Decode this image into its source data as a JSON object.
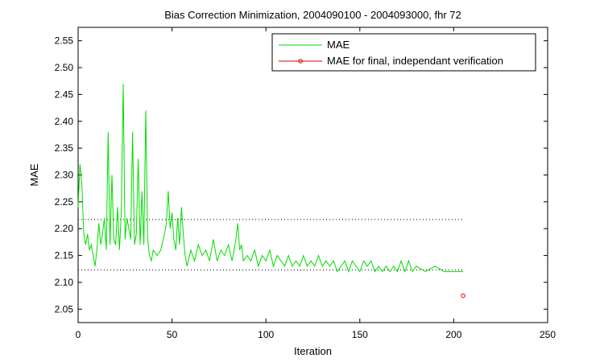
{
  "chart_data": {
    "type": "line",
    "title": "Bias Correction Minimization, 2004090100 - 2004093000, fhr 72",
    "xlabel": "Iteration",
    "ylabel": "MAE",
    "xlim": [
      0,
      250
    ],
    "ylim": [
      2.025,
      2.575
    ],
    "xticks": [
      "0",
      "50",
      "100",
      "150",
      "200",
      "250"
    ],
    "yticks": [
      "2.05",
      "2.10",
      "2.15",
      "2.20",
      "2.25",
      "2.30",
      "2.35",
      "2.40",
      "2.45",
      "2.50",
      "2.55"
    ],
    "legend_position": "top-right",
    "series": [
      {
        "name": "MAE",
        "color": "#00dd00",
        "x": [
          0,
          1,
          2,
          3,
          4,
          5,
          6,
          7,
          8,
          9,
          10,
          11,
          12,
          13,
          14,
          15,
          16,
          17,
          18,
          19,
          20,
          21,
          22,
          23,
          24,
          25,
          26,
          27,
          28,
          29,
          30,
          31,
          32,
          33,
          34,
          35,
          36,
          37,
          38,
          39,
          40,
          42,
          44,
          46,
          47,
          48,
          49,
          50,
          51,
          52,
          53,
          54,
          55,
          56,
          57,
          58,
          60,
          62,
          64,
          66,
          68,
          70,
          72,
          74,
          76,
          78,
          80,
          82,
          84,
          85,
          86,
          87,
          88,
          90,
          92,
          94,
          96,
          98,
          100,
          102,
          104,
          106,
          108,
          110,
          112,
          114,
          116,
          118,
          120,
          122,
          124,
          126,
          128,
          130,
          132,
          134,
          136,
          138,
          140,
          142,
          144,
          146,
          148,
          150,
          152,
          154,
          156,
          158,
          160,
          162,
          164,
          166,
          168,
          170,
          172,
          174,
          176,
          178,
          180,
          185,
          190,
          195,
          200,
          205
        ],
        "y": [
          2.24,
          2.32,
          2.28,
          2.19,
          2.17,
          2.19,
          2.16,
          2.17,
          2.15,
          2.13,
          2.16,
          2.21,
          2.17,
          2.19,
          2.22,
          2.16,
          2.38,
          2.17,
          2.3,
          2.18,
          2.17,
          2.24,
          2.16,
          2.23,
          2.47,
          2.18,
          2.22,
          2.2,
          2.18,
          2.38,
          2.17,
          2.19,
          2.33,
          2.17,
          2.27,
          2.17,
          2.42,
          2.18,
          2.15,
          2.14,
          2.16,
          2.15,
          2.16,
          2.19,
          2.21,
          2.27,
          2.2,
          2.23,
          2.18,
          2.16,
          2.22,
          2.17,
          2.24,
          2.19,
          2.15,
          2.13,
          2.16,
          2.14,
          2.17,
          2.15,
          2.16,
          2.14,
          2.18,
          2.14,
          2.16,
          2.15,
          2.17,
          2.14,
          2.18,
          2.21,
          2.16,
          2.17,
          2.14,
          2.15,
          2.14,
          2.16,
          2.13,
          2.15,
          2.14,
          2.16,
          2.13,
          2.15,
          2.14,
          2.13,
          2.15,
          2.13,
          2.14,
          2.13,
          2.15,
          2.13,
          2.14,
          2.13,
          2.15,
          2.13,
          2.14,
          2.13,
          2.14,
          2.12,
          2.13,
          2.14,
          2.12,
          2.14,
          2.13,
          2.12,
          2.14,
          2.13,
          2.14,
          2.12,
          2.13,
          2.12,
          2.13,
          2.12,
          2.13,
          2.12,
          2.14,
          2.12,
          2.14,
          2.12,
          2.13,
          2.12,
          2.13,
          2.12,
          2.12,
          2.12
        ]
      },
      {
        "name": "MAE for final, independant verification",
        "color": "#dd0000",
        "marker": "circle",
        "x": [
          205
        ],
        "y": [
          2.075
        ]
      }
    ],
    "reference_lines": [
      {
        "style": "dotted",
        "color": "#000000",
        "y": 2.217,
        "x_range": [
          0,
          205
        ]
      },
      {
        "style": "dotted",
        "color": "#000000",
        "y": 2.123,
        "x_range": [
          0,
          205
        ]
      }
    ],
    "grid": false
  }
}
